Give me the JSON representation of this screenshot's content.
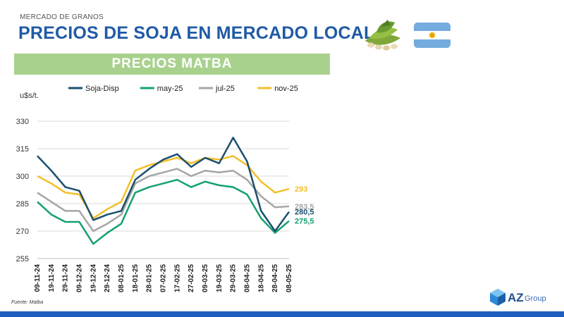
{
  "header": {
    "supertitle": "MERCADO DE GRANOS",
    "title": "PRECIOS DE SOJA EN MERCADO LOCAL",
    "banner": "PRECIOS MATBA"
  },
  "footer": {
    "source": "Fuente: Matba",
    "logo_mark": "AZ",
    "logo_word": "Group"
  },
  "chart_data": {
    "type": "line",
    "ylabel": "u$s/t.",
    "ylim": [
      255,
      330
    ],
    "yticks": [
      255,
      270,
      285,
      300,
      315,
      330
    ],
    "grid": true,
    "legend_position": "top",
    "x": [
      "09-11-24",
      "19-11-24",
      "29-11-24",
      "09-12-24",
      "19-12-24",
      "29-12-24",
      "08-01-25",
      "18-01-25",
      "28-01-25",
      "07-02-25",
      "17-02-25",
      "27-02-25",
      "09-03-25",
      "19-03-25",
      "29-03-25",
      "08-04-25",
      "18-04-25",
      "28-04-25",
      "08-05-25"
    ],
    "series": [
      {
        "name": "Soja-Disp",
        "color": "#1b4f6e",
        "end_label": "280,5",
        "values": [
          311,
          303,
          294,
          292,
          276,
          279,
          281,
          298,
          304,
          309,
          312,
          305,
          310,
          307,
          321,
          308,
          281,
          270,
          280.5
        ]
      },
      {
        "name": "may-25",
        "color": "#14a06e",
        "end_label": "275,5",
        "values": [
          286,
          279,
          275,
          275,
          263,
          269,
          274,
          291,
          294,
          296,
          298,
          294,
          297,
          295,
          294,
          290,
          277,
          269,
          275.5
        ]
      },
      {
        "name": "jul-25",
        "color": "#a6a6a6",
        "end_label": "283,5",
        "values": [
          291,
          286,
          281,
          281,
          270,
          274,
          279,
          296,
          300,
          302,
          304,
          300,
          303,
          302,
          303,
          298,
          289,
          283,
          283.5
        ]
      },
      {
        "name": "nov-25",
        "color": "#f2bf2a",
        "end_label": "293",
        "values": [
          300,
          296,
          291,
          290,
          277,
          282,
          286,
          303,
          306,
          308,
          310,
          307,
          310,
          309,
          311,
          306,
          297,
          291,
          293
        ]
      }
    ]
  },
  "colors": {
    "title": "#1f5aa6",
    "banner": "#a9d18e",
    "grid": "#d9d9d9",
    "bottom_bar": "#1f5fbf"
  }
}
